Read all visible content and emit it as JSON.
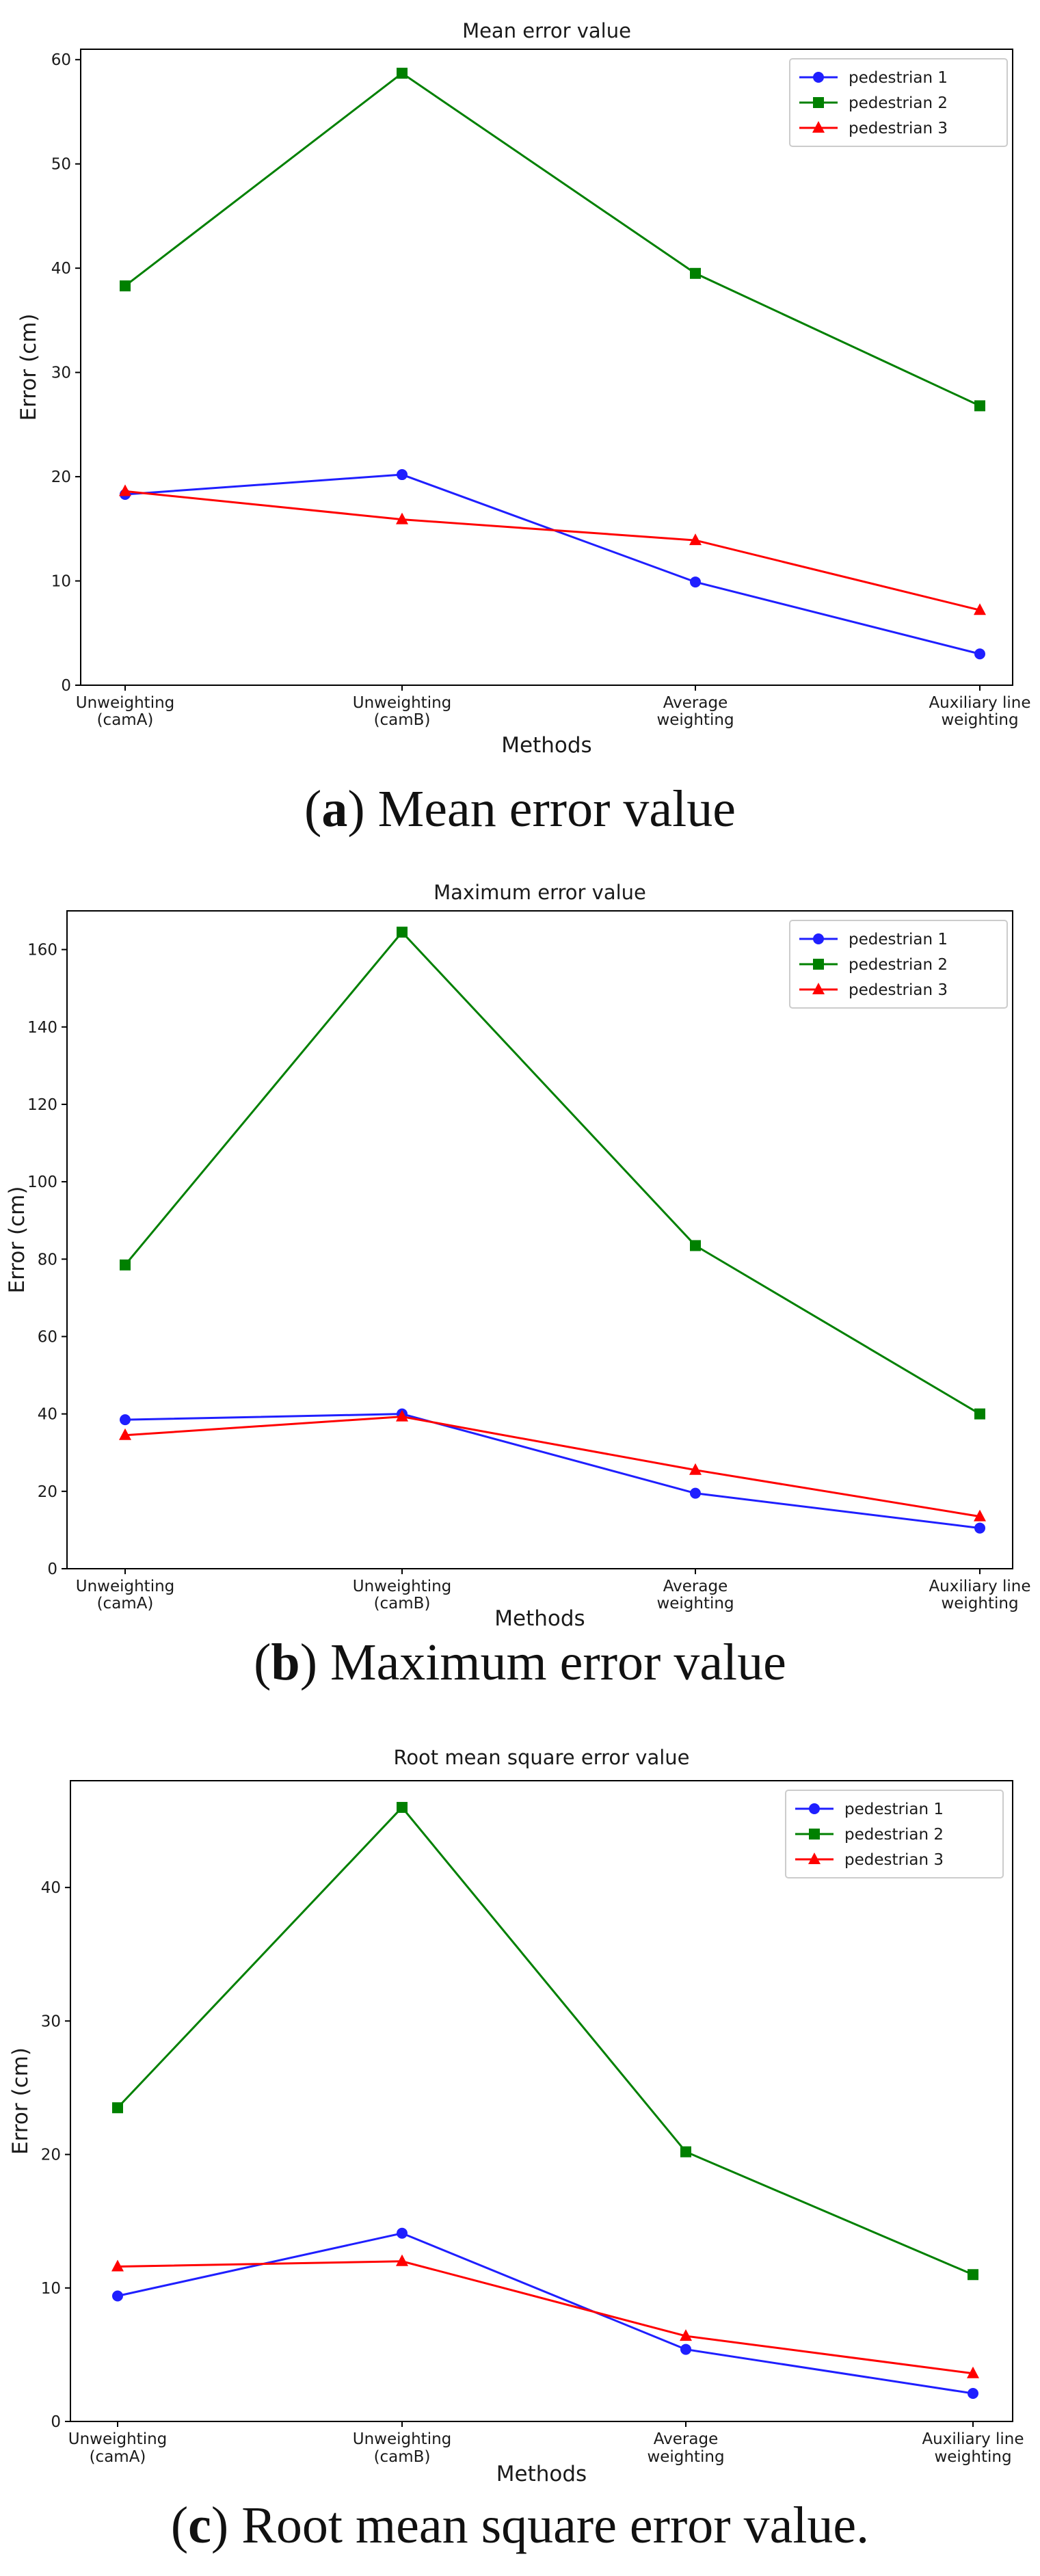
{
  "chart_data": [
    {
      "type": "line",
      "title": "Mean error value",
      "xlabel": "Methods",
      "ylabel": "Error (cm)",
      "categories": [
        "Unweighting\n(camA)",
        "Unweighting\n(camB)",
        "Average\nweighting",
        "Auxiliary line\nweighting"
      ],
      "ylim": [
        0,
        61
      ],
      "yticks": [
        0,
        10,
        20,
        30,
        40,
        50,
        60
      ],
      "legend_position": "top-right",
      "grid": false,
      "caption_letter": "a",
      "caption_text": " Mean error value",
      "series": [
        {
          "name": "pedestrian 1",
          "color": "#1f1fff",
          "marker": "circle",
          "values": [
            18.3,
            20.2,
            9.9,
            3.0
          ]
        },
        {
          "name": "pedestrian 2",
          "color": "#008000",
          "marker": "square",
          "values": [
            38.3,
            58.7,
            39.5,
            26.8
          ]
        },
        {
          "name": "pedestrian 3",
          "color": "#ff0000",
          "marker": "triangle",
          "values": [
            18.6,
            15.9,
            13.9,
            7.2
          ]
        }
      ]
    },
    {
      "type": "line",
      "title": "Maximum error value",
      "xlabel": "Methods",
      "ylabel": "Error (cm)",
      "categories": [
        "Unweighting\n(camA)",
        "Unweighting\n(camB)",
        "Average\nweighting",
        "Auxiliary line\nweighting"
      ],
      "ylim": [
        0,
        170
      ],
      "yticks": [
        0,
        20,
        40,
        60,
        80,
        100,
        120,
        140,
        160
      ],
      "legend_position": "top-right",
      "grid": false,
      "caption_letter": "b",
      "caption_text": " Maximum error value",
      "series": [
        {
          "name": "pedestrian 1",
          "color": "#1f1fff",
          "marker": "circle",
          "values": [
            38.5,
            40.0,
            19.5,
            10.5
          ]
        },
        {
          "name": "pedestrian 2",
          "color": "#008000",
          "marker": "square",
          "values": [
            78.5,
            164.5,
            83.5,
            40.0
          ]
        },
        {
          "name": "pedestrian 3",
          "color": "#ff0000",
          "marker": "triangle",
          "values": [
            34.5,
            39.3,
            25.5,
            13.5
          ]
        }
      ]
    },
    {
      "type": "line",
      "title": "Root mean square error value",
      "xlabel": "Methods",
      "ylabel": "Error (cm)",
      "categories": [
        "Unweighting\n(camA)",
        "Unweighting\n(camB)",
        "Average\nweighting",
        "Auxiliary line\nweighting"
      ],
      "ylim": [
        0,
        48
      ],
      "yticks": [
        0,
        10,
        20,
        30,
        40
      ],
      "legend_position": "top-right",
      "grid": false,
      "caption_letter": "c",
      "caption_text": " Root mean square error value.",
      "series": [
        {
          "name": "pedestrian 1",
          "color": "#1f1fff",
          "marker": "circle",
          "values": [
            9.4,
            14.1,
            5.4,
            2.1
          ]
        },
        {
          "name": "pedestrian 2",
          "color": "#008000",
          "marker": "square",
          "values": [
            23.5,
            46.0,
            20.2,
            11.0
          ]
        },
        {
          "name": "pedestrian 3",
          "color": "#ff0000",
          "marker": "triangle",
          "values": [
            11.6,
            12.0,
            6.4,
            3.6
          ]
        }
      ]
    }
  ]
}
